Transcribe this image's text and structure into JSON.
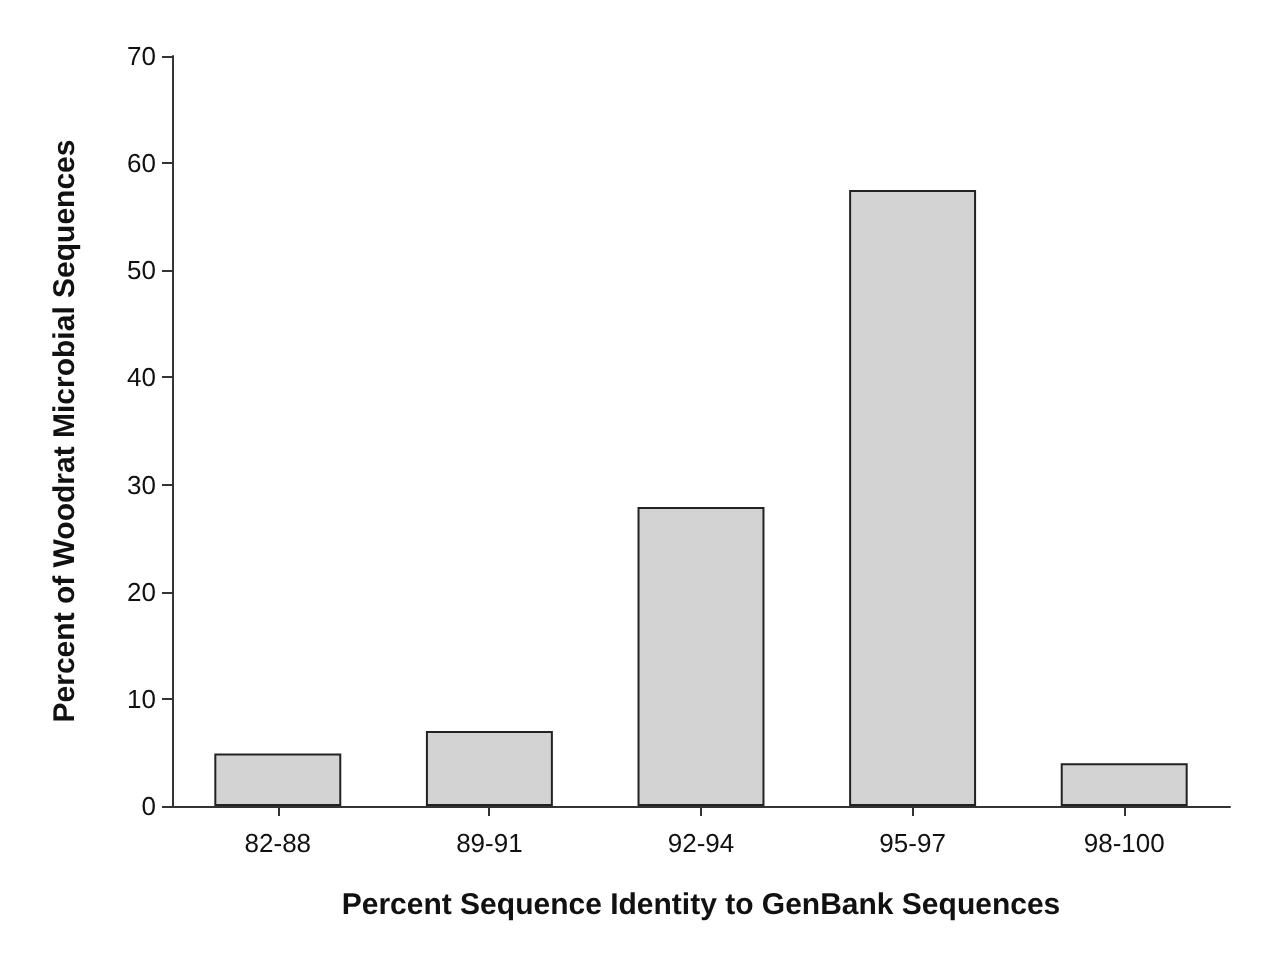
{
  "chart_data": {
    "type": "bar",
    "xlabel": "Percent Sequence Identity to GenBank Sequences",
    "ylabel": "Percent of Woodrat Microbial Sequences",
    "categories": [
      "82-88",
      "89-91",
      "92-94",
      "95-97",
      "98-100"
    ],
    "values": [
      4.9,
      7,
      27.9,
      57.5,
      4
    ],
    "color": "#d3d3d3",
    "ylim": [
      0,
      70
    ],
    "yticks": [
      0,
      10,
      20,
      30,
      40,
      50,
      60,
      70
    ],
    "grid": false
  }
}
